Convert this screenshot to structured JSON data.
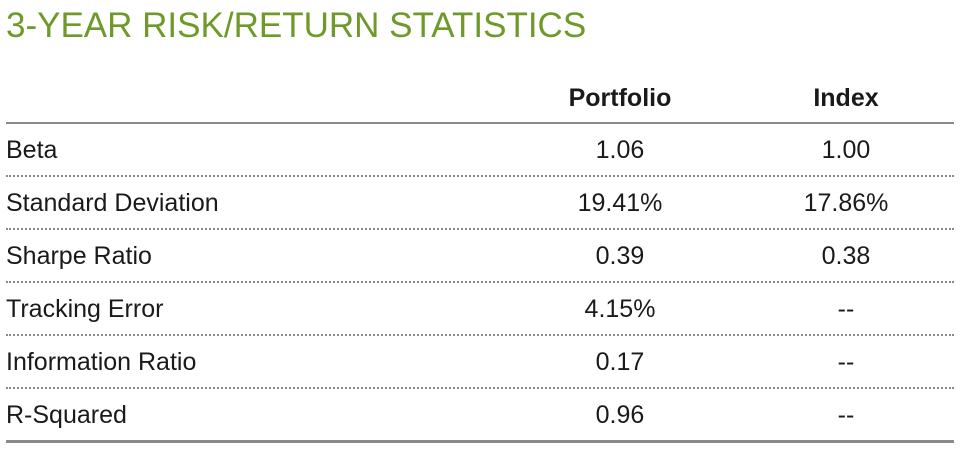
{
  "title": "3-YEAR RISK/RETURN STATISTICS",
  "columns": {
    "portfolio": "Portfolio",
    "index": "Index"
  },
  "rows": [
    {
      "label": "Beta",
      "portfolio": "1.06",
      "index": "1.00"
    },
    {
      "label": "Standard Deviation",
      "portfolio": "19.41%",
      "index": "17.86%"
    },
    {
      "label": "Sharpe Ratio",
      "portfolio": "0.39",
      "index": "0.38"
    },
    {
      "label": "Tracking Error",
      "portfolio": "4.15%",
      "index": "--"
    },
    {
      "label": "Information Ratio",
      "portfolio": "0.17",
      "index": "--"
    },
    {
      "label": "R-Squared",
      "portfolio": "0.96",
      "index": "--"
    }
  ],
  "colors": {
    "title": "#6f9a2a",
    "rule": "#8a8a8a",
    "text": "#1a1a1a"
  }
}
